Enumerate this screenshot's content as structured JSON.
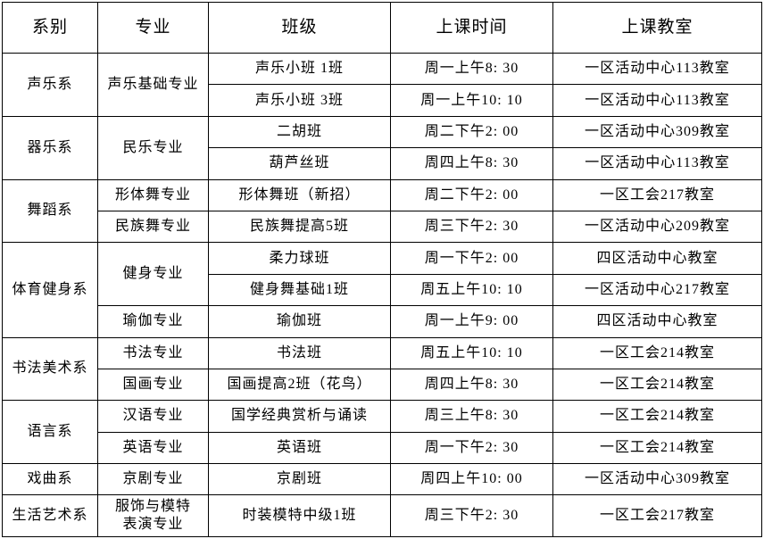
{
  "headers": [
    "系别",
    "专业",
    "班级",
    "上课时间",
    "上课教室"
  ],
  "departments": [
    {
      "name": "声乐系",
      "majors": [
        {
          "name": "声乐基础专业",
          "classes": [
            {
              "name": "声乐小班 1班",
              "time": "周一上午8: 30",
              "room": "一区活动中心113教室"
            },
            {
              "name": "声乐小班 3班",
              "time": "周一上午10: 10",
              "room": "一区活动中心113教室"
            }
          ]
        }
      ]
    },
    {
      "name": "器乐系",
      "majors": [
        {
          "name": "民乐专业",
          "classes": [
            {
              "name": "二胡班",
              "time": "周二下午2: 00",
              "room": "一区活动中心309教室"
            },
            {
              "name": "葫芦丝班",
              "time": "周四上午8: 30",
              "room": "一区活动中心113教室"
            }
          ]
        }
      ]
    },
    {
      "name": "舞蹈系",
      "majors": [
        {
          "name": "形体舞专业",
          "classes": [
            {
              "name": "形体舞班（新招）",
              "time": "周二下午2: 00",
              "room": "一区工会217教室"
            }
          ]
        },
        {
          "name": "民族舞专业",
          "classes": [
            {
              "name": "民族舞提高5班",
              "time": "周三下午2: 30",
              "room": "一区活动中心209教室"
            }
          ]
        }
      ]
    },
    {
      "name": "体育健身系",
      "majors": [
        {
          "name": "健身专业",
          "classes": [
            {
              "name": "柔力球班",
              "time": "周一下午2: 00",
              "room": "四区活动中心教室"
            },
            {
              "name": "健身舞基础1班",
              "time": "周五上午10: 10",
              "room": "一区活动中心217教室"
            }
          ]
        },
        {
          "name": "瑜伽专业",
          "classes": [
            {
              "name": "瑜伽班",
              "time": "周一上午9: 00",
              "room": "四区活动中心教室"
            }
          ]
        }
      ]
    },
    {
      "name": "书法美术系",
      "majors": [
        {
          "name": "书法专业",
          "classes": [
            {
              "name": "书法班",
              "time": "周五上午10: 10",
              "room": "一区工会214教室"
            }
          ]
        },
        {
          "name": "国画专业",
          "classes": [
            {
              "name": "国画提高2班（花鸟）",
              "time": "周四上午8: 30",
              "room": "一区工会214教室"
            }
          ]
        }
      ]
    },
    {
      "name": "语言系",
      "majors": [
        {
          "name": "汉语专业",
          "classes": [
            {
              "name": "国学经典赏析与诵读",
              "time": "周三上午8: 30",
              "room": "一区工会214教室"
            }
          ]
        },
        {
          "name": "英语专业",
          "classes": [
            {
              "name": "英语班",
              "time": "周一下午2: 30",
              "room": "一区工会214教室"
            }
          ]
        }
      ]
    },
    {
      "name": "戏曲系",
      "majors": [
        {
          "name": "京剧专业",
          "classes": [
            {
              "name": "京剧班",
              "time": "周四上午10: 00",
              "room": "一区活动中心309教室"
            }
          ]
        }
      ]
    },
    {
      "name": "生活艺术系",
      "majors": [
        {
          "name": "服饰与模特\n表演专业",
          "classes": [
            {
              "name": "时装模特中级1班",
              "time": "周三下午2: 30",
              "room": "一区工会217教室"
            }
          ]
        }
      ]
    }
  ]
}
